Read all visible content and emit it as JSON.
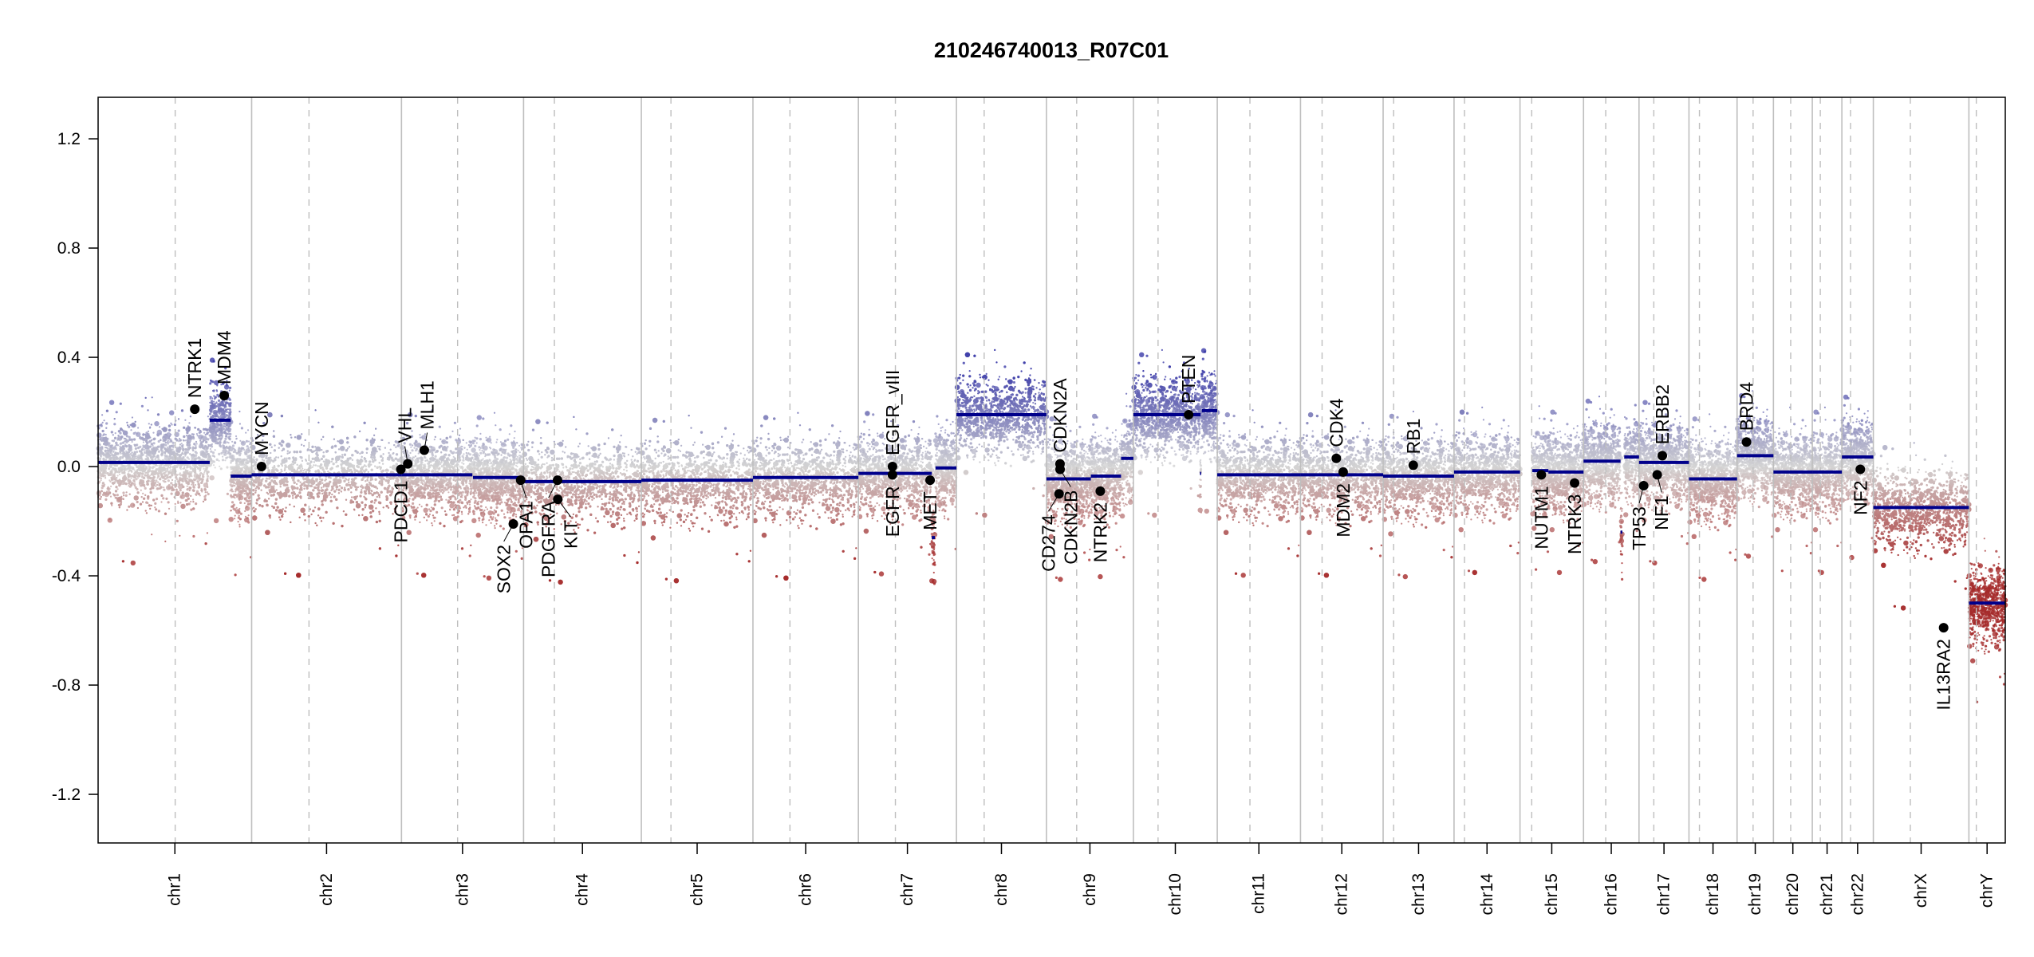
{
  "chart_data": {
    "type": "scatter",
    "title": "210246740013_R07C01",
    "xlabel": "",
    "ylabel": "",
    "ylim": [
      -1.378,
      1.352
    ],
    "yticks": [
      "1.2",
      "0.8",
      "0.4",
      "0.0",
      "-0.4",
      "-0.8",
      "-1.2"
    ],
    "ytick_values": [
      1.2,
      0.8,
      0.4,
      0.0,
      -0.4,
      -0.8,
      -1.2
    ],
    "grid": false,
    "chromosomes": [
      {
        "name": "chr1",
        "length": 249,
        "centromere": 125
      },
      {
        "name": "chr2",
        "length": 243,
        "centromere": 93
      },
      {
        "name": "chr3",
        "length": 198,
        "centromere": 91
      },
      {
        "name": "chr4",
        "length": 191,
        "centromere": 50
      },
      {
        "name": "chr5",
        "length": 181,
        "centromere": 48
      },
      {
        "name": "chr6",
        "length": 171,
        "centromere": 60
      },
      {
        "name": "chr7",
        "length": 159,
        "centromere": 60
      },
      {
        "name": "chr8",
        "length": 146,
        "centromere": 45
      },
      {
        "name": "chr9",
        "length": 141,
        "centromere": 49
      },
      {
        "name": "chr10",
        "length": 136,
        "centromere": 40
      },
      {
        "name": "chr11",
        "length": 135,
        "centromere": 53
      },
      {
        "name": "chr12",
        "length": 134,
        "centromere": 35
      },
      {
        "name": "chr13",
        "length": 115,
        "centromere": 17
      },
      {
        "name": "chr14",
        "length": 107,
        "centromere": 17
      },
      {
        "name": "chr15",
        "length": 103,
        "centromere": 19
      },
      {
        "name": "chr16",
        "length": 90,
        "centromere": 36
      },
      {
        "name": "chr17",
        "length": 81,
        "centromere": 24
      },
      {
        "name": "chr18",
        "length": 78,
        "centromere": 17
      },
      {
        "name": "chr19",
        "length": 59,
        "centromere": 26
      },
      {
        "name": "chr20",
        "length": 63,
        "centromere": 28
      },
      {
        "name": "chr21",
        "length": 48,
        "centromere": 13
      },
      {
        "name": "chr22",
        "length": 51,
        "centromere": 14
      },
      {
        "name": "chrX",
        "length": 155,
        "centromere": 60
      },
      {
        "name": "chrY",
        "length": 59,
        "centromere": 12
      }
    ],
    "segments": [
      {
        "chr": "chr1",
        "start": 0,
        "end": 181,
        "value": 0.015
      },
      {
        "chr": "chr1",
        "start": 181,
        "end": 215,
        "value": 0.17
      },
      {
        "chr": "chr1",
        "start": 215,
        "end": 249,
        "value": -0.035
      },
      {
        "chr": "chr2",
        "start": 0,
        "end": 243,
        "value": -0.03
      },
      {
        "chr": "chr3",
        "start": 0,
        "end": 115,
        "value": -0.03
      },
      {
        "chr": "chr3",
        "start": 116,
        "end": 198,
        "value": -0.04
      },
      {
        "chr": "chr4",
        "start": 0,
        "end": 191,
        "value": -0.055
      },
      {
        "chr": "chr5",
        "start": 0,
        "end": 181,
        "value": -0.05
      },
      {
        "chr": "chr6",
        "start": 0,
        "end": 171,
        "value": -0.04
      },
      {
        "chr": "chr7",
        "start": 0,
        "end": 119,
        "value": -0.025
      },
      {
        "chr": "chr7",
        "start": 119,
        "end": 124,
        "value": -0.26
      },
      {
        "chr": "chr7",
        "start": 125,
        "end": 159,
        "value": -0.005
      },
      {
        "chr": "chr8",
        "start": 0,
        "end": 146,
        "value": 0.19
      },
      {
        "chr": "chr9",
        "start": 0,
        "end": 72,
        "value": -0.045
      },
      {
        "chr": "chr9",
        "start": 72,
        "end": 121,
        "value": -0.035
      },
      {
        "chr": "chr9",
        "start": 121,
        "end": 141,
        "value": 0.03
      },
      {
        "chr": "chr10",
        "start": 0,
        "end": 109,
        "value": 0.19
      },
      {
        "chr": "chr10",
        "start": 108,
        "end": 110,
        "value": -0.025
      },
      {
        "chr": "chr10",
        "start": 111,
        "end": 136,
        "value": 0.205
      },
      {
        "chr": "chr11",
        "start": 0,
        "end": 135,
        "value": -0.03
      },
      {
        "chr": "chr12",
        "start": 0,
        "end": 134,
        "value": -0.03
      },
      {
        "chr": "chr13",
        "start": 0,
        "end": 115,
        "value": -0.035
      },
      {
        "chr": "chr14",
        "start": 0,
        "end": 107,
        "value": -0.02
      },
      {
        "chr": "chr15",
        "start": 20,
        "end": 46,
        "value": -0.015
      },
      {
        "chr": "chr15",
        "start": 46,
        "end": 103,
        "value": -0.02
      },
      {
        "chr": "chr16",
        "start": 0,
        "end": 60,
        "value": 0.02
      },
      {
        "chr": "chr16",
        "start": 60,
        "end": 63,
        "value": -0.24
      },
      {
        "chr": "chr16",
        "start": 66,
        "end": 90,
        "value": 0.035
      },
      {
        "chr": "chr17",
        "start": 0,
        "end": 81,
        "value": 0.015
      },
      {
        "chr": "chr18",
        "start": 0,
        "end": 78,
        "value": -0.045
      },
      {
        "chr": "chr19",
        "start": 0,
        "end": 59,
        "value": 0.04
      },
      {
        "chr": "chr20",
        "start": 0,
        "end": 63,
        "value": -0.02
      },
      {
        "chr": "chr21",
        "start": 0,
        "end": 48,
        "value": -0.02
      },
      {
        "chr": "chr22",
        "start": 0,
        "end": 51,
        "value": 0.035
      },
      {
        "chr": "chrX",
        "start": 0,
        "end": 155,
        "value": -0.15
      },
      {
        "chr": "chrY",
        "start": 0,
        "end": 59,
        "value": -0.5
      }
    ],
    "genes": [
      {
        "name": "NTRK1",
        "chr": "chr1",
        "pos": 156.8,
        "value": 0.21,
        "label": "above"
      },
      {
        "name": "MDM4",
        "chr": "chr1",
        "pos": 204.5,
        "value": 0.26,
        "label": "above"
      },
      {
        "name": "MYCN",
        "chr": "chr2",
        "pos": 16,
        "value": 0.0,
        "label": "above"
      },
      {
        "name": "PDCD1",
        "chr": "chr2",
        "pos": 242,
        "value": -0.01,
        "label": "below"
      },
      {
        "name": "VHL",
        "chr": "chr3",
        "pos": 10.2,
        "value": 0.01,
        "label": "above"
      },
      {
        "name": "MLH1",
        "chr": "chr3",
        "pos": 37,
        "value": 0.06,
        "label": "above"
      },
      {
        "name": "SOX2",
        "chr": "chr3",
        "pos": 181.4,
        "value": -0.21,
        "label": "below"
      },
      {
        "name": "OPA1",
        "chr": "chr3",
        "pos": 193.3,
        "value": -0.05,
        "label": "below"
      },
      {
        "name": "PDGFRA",
        "chr": "chr4",
        "pos": 55.1,
        "value": -0.05,
        "label": "below"
      },
      {
        "name": "KIT",
        "chr": "chr4",
        "pos": 55.5,
        "value": -0.12,
        "label": "below"
      },
      {
        "name": "EGFR",
        "chr": "chr7",
        "pos": 55.2,
        "value": -0.03,
        "label": "below"
      },
      {
        "name": "EGFR_vIII",
        "chr": "chr7",
        "pos": 55.3,
        "value": 0.0,
        "label": "above"
      },
      {
        "name": "MET",
        "chr": "chr7",
        "pos": 116.3,
        "value": -0.05,
        "label": "below"
      },
      {
        "name": "CD274",
        "chr": "chr9",
        "pos": 20.5,
        "value": -0.1,
        "label": "below"
      },
      {
        "name": "CDKN2A",
        "chr": "chr9",
        "pos": 22.0,
        "value": 0.01,
        "label": "above"
      },
      {
        "name": "CDKN2B",
        "chr": "chr9",
        "pos": 22.1,
        "value": -0.01,
        "label": "below"
      },
      {
        "name": "NTRK2",
        "chr": "chr9",
        "pos": 87.3,
        "value": -0.09,
        "label": "below"
      },
      {
        "name": "PTEN",
        "chr": "chr10",
        "pos": 89.6,
        "value": 0.19,
        "label": "above"
      },
      {
        "name": "CDK4",
        "chr": "chr12",
        "pos": 58.1,
        "value": 0.03,
        "label": "above"
      },
      {
        "name": "MDM2",
        "chr": "chr12",
        "pos": 69.2,
        "value": -0.02,
        "label": "below"
      },
      {
        "name": "RB1",
        "chr": "chr13",
        "pos": 48.9,
        "value": 0.005,
        "label": "above"
      },
      {
        "name": "NUTM1",
        "chr": "chr15",
        "pos": 34.6,
        "value": -0.03,
        "label": "below"
      },
      {
        "name": "NTRK3",
        "chr": "chr15",
        "pos": 88.5,
        "value": -0.06,
        "label": "below"
      },
      {
        "name": "TP53",
        "chr": "chr17",
        "pos": 7.5,
        "value": -0.07,
        "label": "below"
      },
      {
        "name": "NF1",
        "chr": "chr17",
        "pos": 29.5,
        "value": -0.03,
        "label": "below"
      },
      {
        "name": "ERBB2",
        "chr": "chr17",
        "pos": 37.8,
        "value": 0.04,
        "label": "above"
      },
      {
        "name": "BRD4",
        "chr": "chr19",
        "pos": 15.3,
        "value": 0.09,
        "label": "above"
      },
      {
        "name": "NF2",
        "chr": "chr22",
        "pos": 29.9,
        "value": -0.01,
        "label": "below"
      },
      {
        "name": "IL13RA2",
        "chr": "chrX",
        "pos": 114,
        "value": -0.59,
        "label": "below"
      }
    ],
    "colors": {
      "segment": "#00008b",
      "gain": "#3a3aa8",
      "loss": "#a52a2a",
      "neutral": "#d3d3d3",
      "gene": "#000000",
      "chr_line": "#bebebe"
    }
  }
}
